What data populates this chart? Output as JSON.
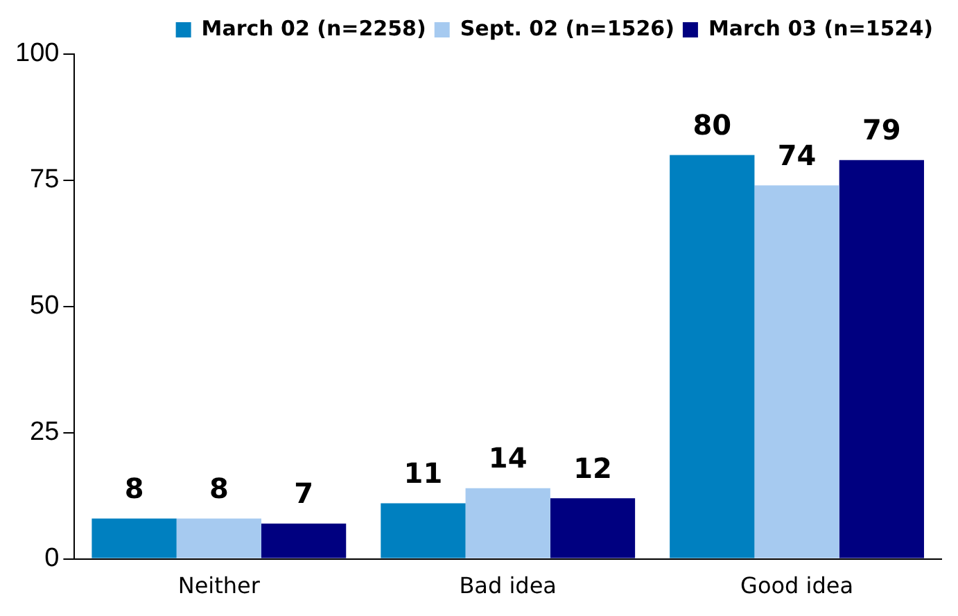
{
  "chart_data": {
    "type": "bar",
    "categories": [
      "Neither",
      "Bad idea",
      "Good idea"
    ],
    "series": [
      {
        "name": "March 02 (n=2258)",
        "color": "#0080c0",
        "values": [
          8,
          11,
          80
        ]
      },
      {
        "name": "Sept. 02 (n=1526)",
        "color": "#a6caf0",
        "values": [
          8,
          14,
          74
        ]
      },
      {
        "name": "March 03 (n=1524)",
        "color": "#000080",
        "values": [
          7,
          12,
          79
        ]
      }
    ],
    "ylim": [
      0,
      100
    ],
    "yticks": [
      0,
      25,
      50,
      75,
      100
    ],
    "grid": false,
    "legend": "top",
    "data_labels": true
  }
}
